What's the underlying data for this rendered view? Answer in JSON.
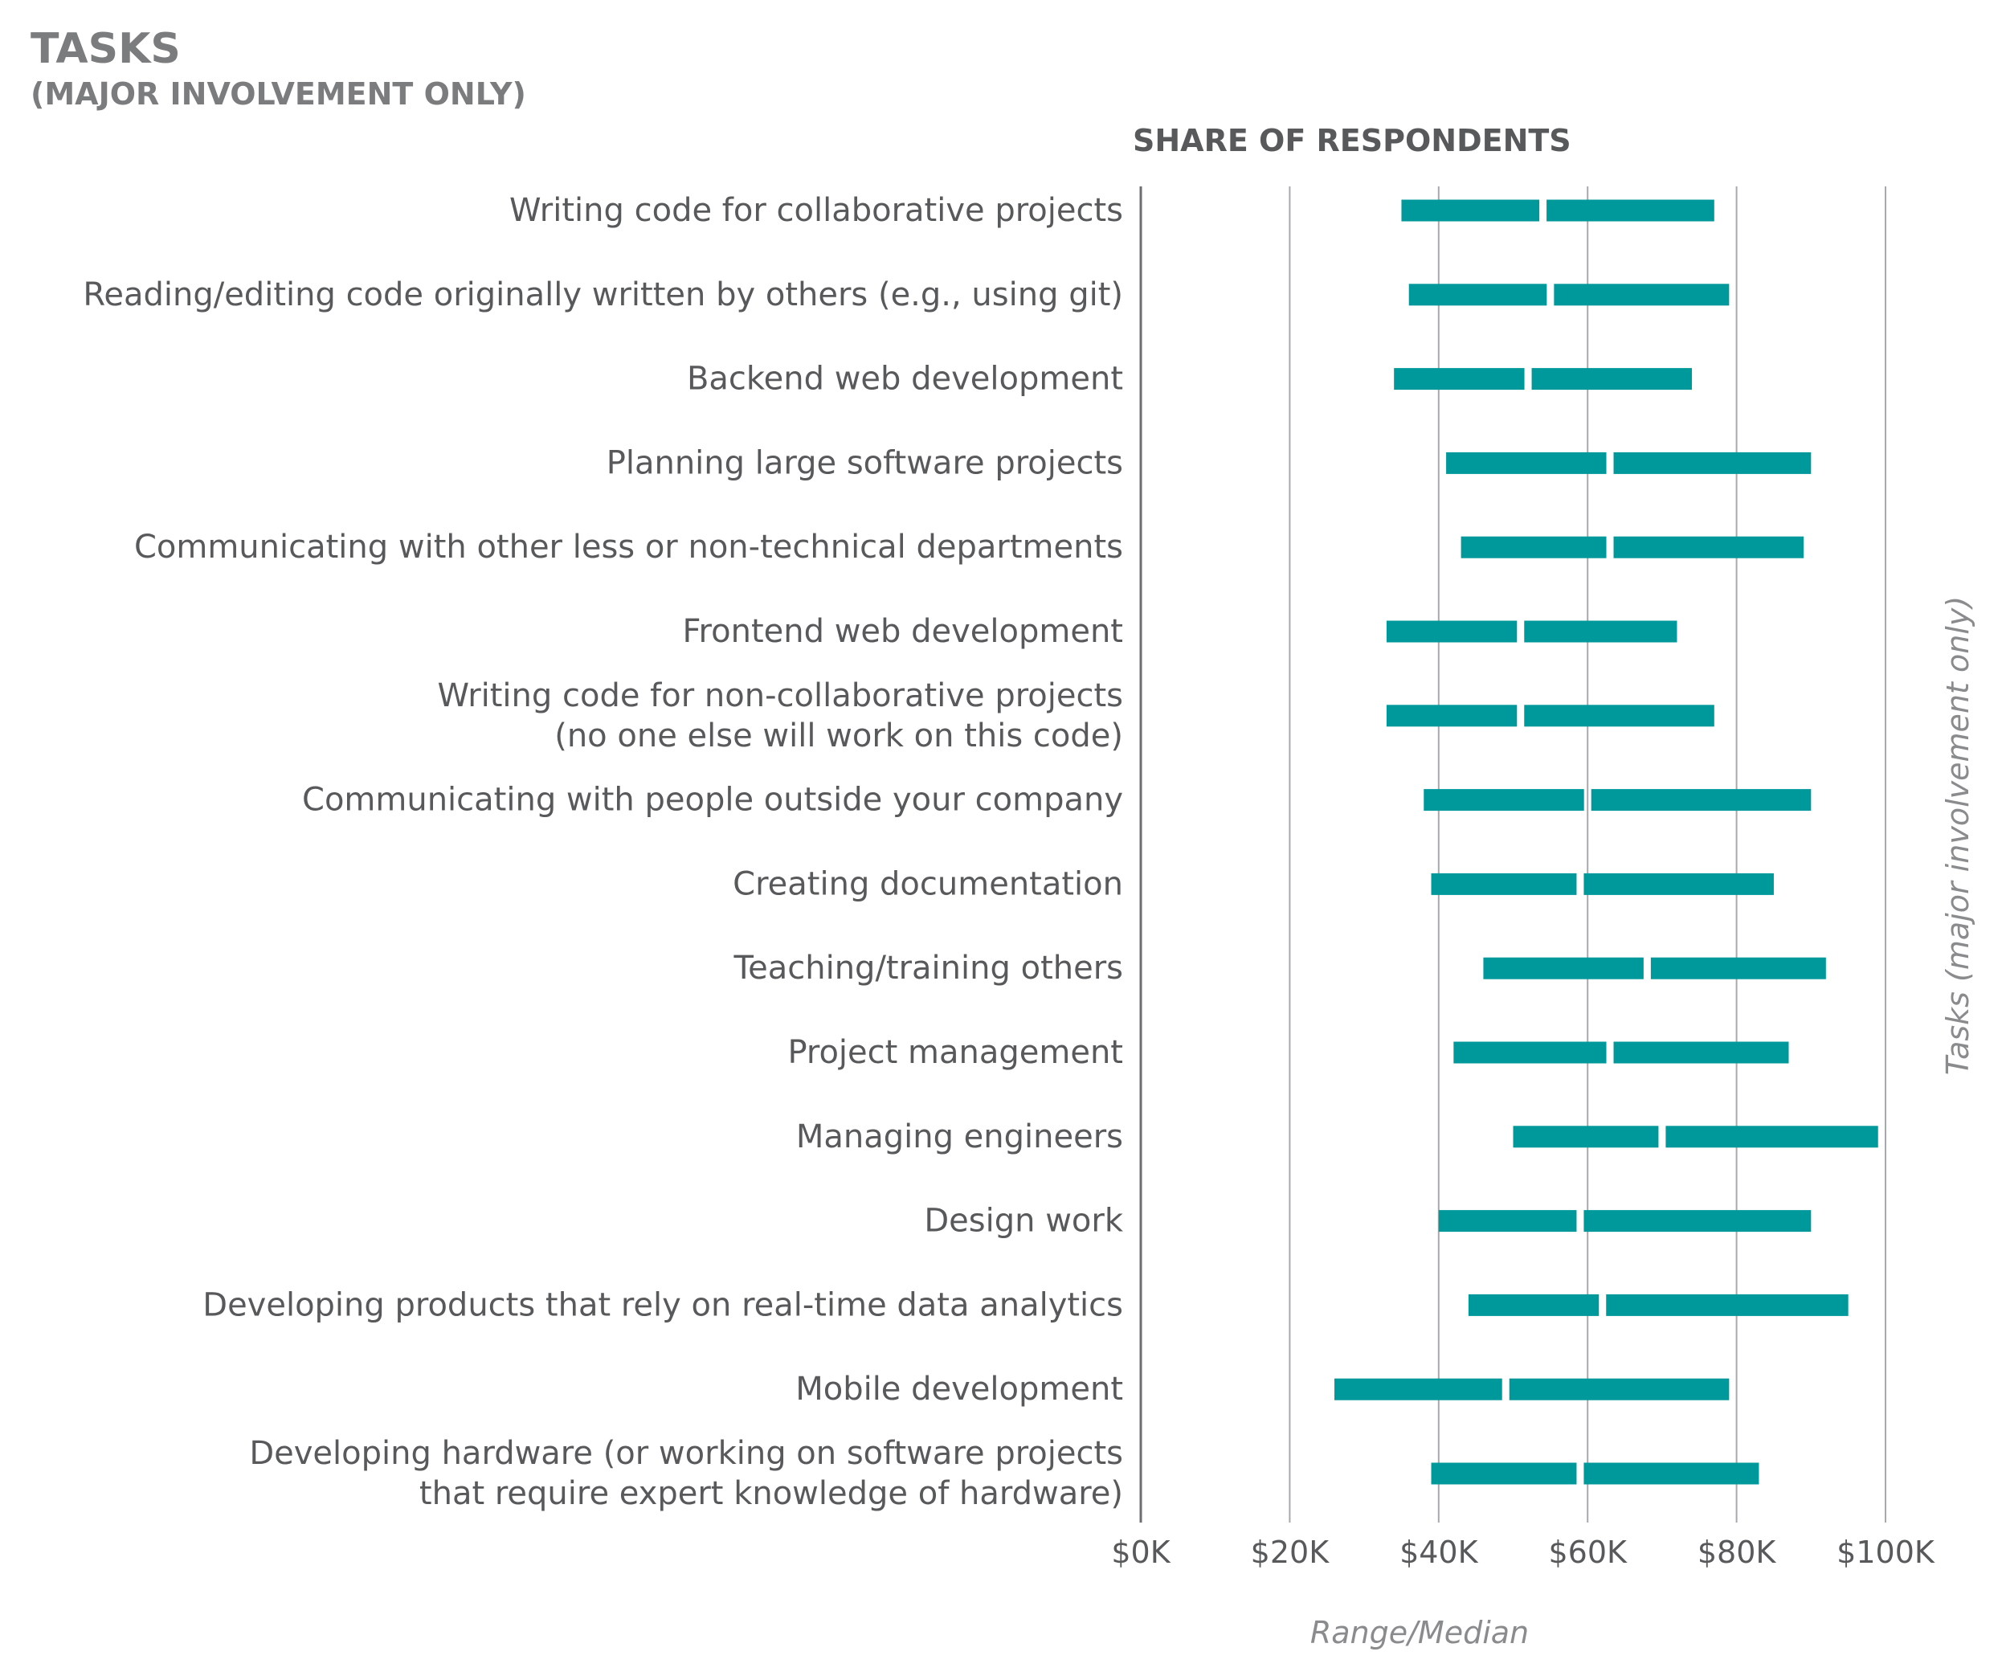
{
  "header": {
    "title": "TASKS",
    "subtitle": "(MAJOR INVOLVEMENT ONLY)"
  },
  "colors": {
    "bar": "#00999b",
    "gridline": "#a7a9ac",
    "axis_line": "#6d6e71",
    "text": "#58595b",
    "muted_text": "#8a8b8d"
  },
  "chart_data": {
    "type": "range-bar",
    "title": "SHARE OF RESPONDENTS",
    "xlabel": "Range/Median",
    "ylabel": "Tasks (major involvement only)",
    "xlim": [
      0,
      100
    ],
    "x_ticks": [
      0,
      20,
      40,
      60,
      80,
      100
    ],
    "x_tick_labels": [
      "$0K",
      "$20K",
      "$40K",
      "$60K",
      "$80K",
      "$100K"
    ],
    "grid": true,
    "categories": [
      [
        "Writing code for collaborative projects"
      ],
      [
        "Reading/editing code originally written by others (e.g., using git)"
      ],
      [
        "Backend web development"
      ],
      [
        "Planning large software projects"
      ],
      [
        "Communicating with other less or non-technical departments"
      ],
      [
        "Frontend web development"
      ],
      [
        "Writing code for non-collaborative projects",
        "(no one else will work on this code)"
      ],
      [
        "Communicating with people outside your company"
      ],
      [
        "Creating documentation"
      ],
      [
        "Teaching/training others"
      ],
      [
        "Project management"
      ],
      [
        "Managing engineers"
      ],
      [
        "Design work"
      ],
      [
        "Developing products that rely on real-time data analytics"
      ],
      [
        "Mobile development"
      ],
      [
        "Developing hardware (or working on software projects",
        "that require expert knowledge of hardware)"
      ]
    ],
    "series": [
      {
        "low": [
          35,
          36,
          34,
          41,
          43,
          33,
          33,
          38,
          39,
          46,
          42,
          50,
          40,
          44,
          26,
          39
        ],
        "median": [
          54,
          55,
          52,
          63,
          63,
          51,
          51,
          60,
          59,
          68,
          63,
          70,
          59,
          62,
          49,
          59
        ],
        "high": [
          77,
          79,
          74,
          90,
          89,
          72,
          77,
          90,
          85,
          92,
          87,
          99,
          90,
          95,
          79,
          83
        ]
      }
    ]
  }
}
